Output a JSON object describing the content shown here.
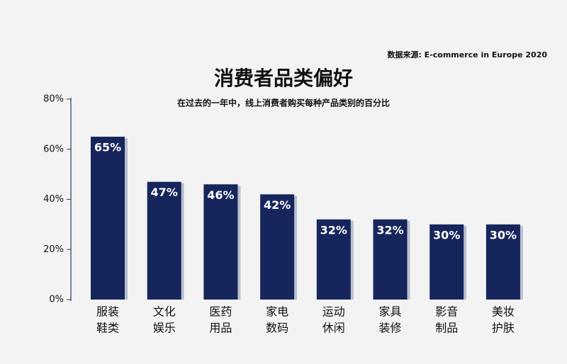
{
  "chart_data": {
    "type": "bar",
    "title": "消费者品类偏好",
    "subtitle": "在过去的一年中，线上消费者购买每种产品类别的百分比",
    "source": "数据来源: E-commerce in Europe 2020",
    "categories": [
      [
        "服装",
        "鞋类"
      ],
      [
        "文化",
        "娱乐"
      ],
      [
        "医药",
        "用品"
      ],
      [
        "家电",
        "数码"
      ],
      [
        "运动",
        "休闲"
      ],
      [
        "家具",
        "装修"
      ],
      [
        "影音",
        "制品"
      ],
      [
        "美妆",
        "护肤"
      ]
    ],
    "values": [
      65,
      47,
      46,
      42,
      32,
      32,
      30,
      30
    ],
    "value_labels": [
      "65%",
      "47%",
      "46%",
      "42%",
      "32%",
      "32%",
      "30%",
      "30%"
    ],
    "color": "#16265c",
    "ylim": [
      0,
      80
    ],
    "yticks": [
      {
        "value": 0,
        "label": "0%"
      },
      {
        "value": 20,
        "label": "20%"
      },
      {
        "value": 40,
        "label": "40%"
      },
      {
        "value": 60,
        "label": "60%"
      },
      {
        "value": 80,
        "label": "80%"
      }
    ]
  }
}
